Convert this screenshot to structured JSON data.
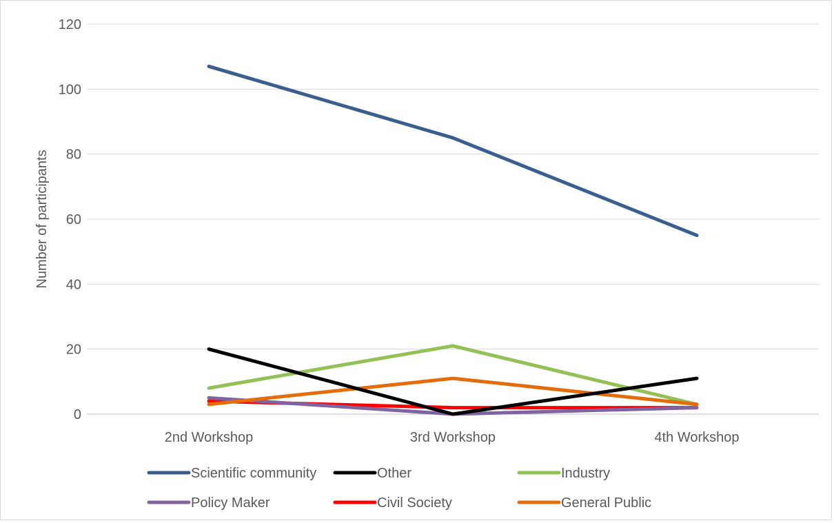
{
  "chart_data": {
    "type": "line",
    "title": "",
    "xlabel": "",
    "ylabel": "Number of participants",
    "ylim": [
      0,
      120
    ],
    "yticks": [
      0,
      20,
      40,
      60,
      80,
      100,
      120
    ],
    "grid": true,
    "legend_position": "bottom",
    "categories": [
      "2nd Workshop",
      "3rd Workshop",
      "4th Workshop"
    ],
    "series": [
      {
        "name": "Scientific community",
        "color": "#3a5f8f",
        "values": [
          107,
          85,
          55
        ]
      },
      {
        "name": "Other",
        "color": "#000000",
        "values": [
          20,
          0,
          11
        ]
      },
      {
        "name": "Industry",
        "color": "#92c156",
        "values": [
          8,
          21,
          3
        ]
      },
      {
        "name": "Policy Maker",
        "color": "#8064a2",
        "values": [
          5,
          0,
          2
        ]
      },
      {
        "name": "Civil Society",
        "color": "#ff0000",
        "values": [
          4,
          2,
          2
        ]
      },
      {
        "name": "General Public",
        "color": "#e46c0a",
        "values": [
          3,
          11,
          3
        ]
      }
    ]
  }
}
